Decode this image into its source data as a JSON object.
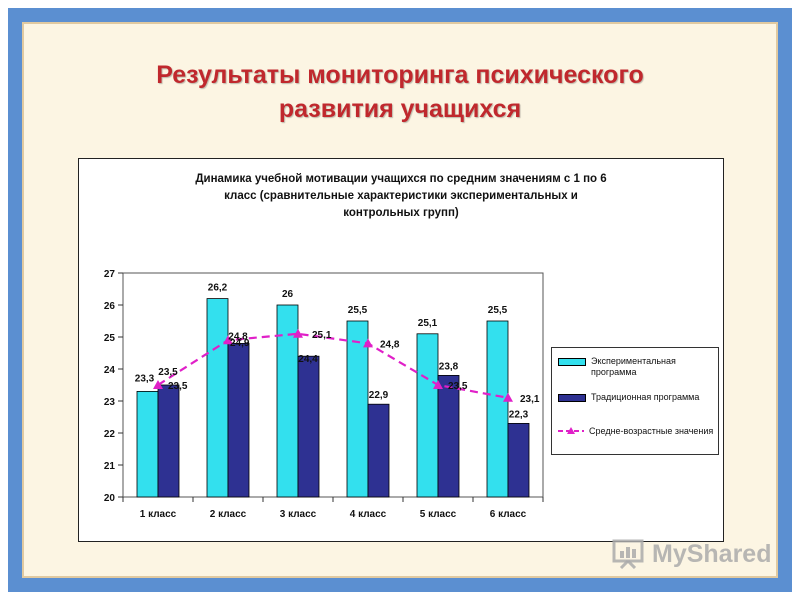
{
  "slide_title": "Результаты мониторинга психического\nразвития учащихся",
  "chart_data": {
    "type": "bar",
    "title": "Динамика учебной мотивации учащихся по средним значениям с 1 по 6\nкласс (сравнительные характеристики экспериментальных и\nконтрольных групп)",
    "categories": [
      "1 класс",
      "2 класс",
      "3 класс",
      "4 класс",
      "5 класс",
      "6 класс"
    ],
    "ylim": [
      20,
      27
    ],
    "yticks": [
      "20",
      "21",
      "22",
      "23",
      "24",
      "25",
      "26",
      "27"
    ],
    "series": [
      {
        "name": "Экспериментальная программа",
        "type": "bar",
        "color": "#33e0ee",
        "values": [
          23.3,
          26.2,
          26,
          25.5,
          25.1,
          25.5
        ],
        "labels": [
          "23,3",
          "26,2",
          "26",
          "25,5",
          "25,1",
          "25,5"
        ]
      },
      {
        "name": "Традиционная программа",
        "type": "bar",
        "color": "#2e3192",
        "values": [
          23.5,
          24.8,
          24.4,
          22.9,
          23.8,
          22.3
        ],
        "labels": [
          "23,5",
          "24,8",
          "24,4",
          "22,9",
          "23,8",
          "22,3"
        ]
      },
      {
        "name": "Средне-возрастные значения",
        "type": "line",
        "color": "#e020c8",
        "values": [
          23.5,
          24.9,
          25.1,
          24.8,
          23.5,
          23.1
        ],
        "labels": [
          "23,5",
          "24,9",
          "25,1",
          "24,8",
          "23,5",
          "23,1"
        ]
      }
    ],
    "legend_position": "right"
  },
  "watermark": "MyShared"
}
